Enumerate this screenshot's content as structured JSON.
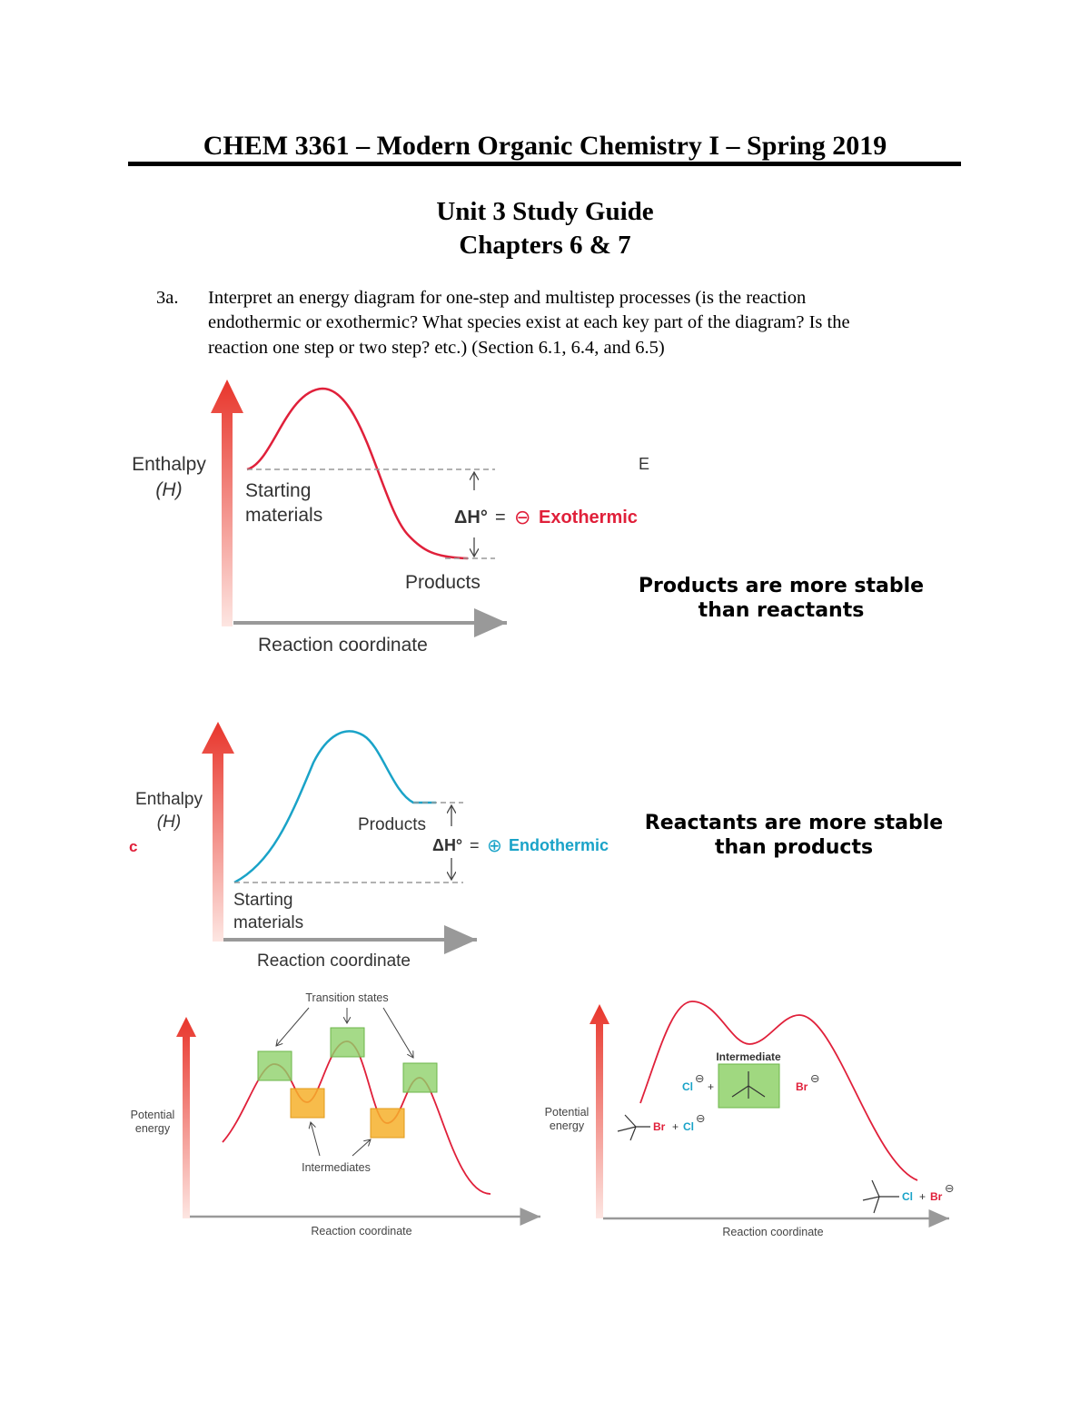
{
  "header": {
    "title": "CHEM 3361 – Modern Organic Chemistry I – Spring 2019"
  },
  "subtitle": {
    "line1": "Unit 3 Study Guide",
    "line2": "Chapters 6 & 7"
  },
  "objective": {
    "number": "3a.",
    "lines": [
      "Interpret an energy diagram for one-step and multistep processes (is the reaction",
      "endothermic or exothermic? What species exist at each key part of the diagram? Is the",
      "reaction one step or two step? etc.) (Section 6.1, 6.4, and 6.5)"
    ]
  },
  "diagrams": [
    {
      "y_label": "Enthalpy",
      "y_symbol": "(H)",
      "start_label": [
        "Starting",
        "materials"
      ],
      "end_label": "Products",
      "delta": "ΔH°",
      "equals": "=",
      "sign": "⊖",
      "result": "Exothermic",
      "x_label": "Reaction coordinate",
      "stray": "E",
      "note": [
        "Products are more stable",
        "than reactants"
      ]
    },
    {
      "y_label": "Enthalpy",
      "y_symbol": "(H)",
      "start_label": [
        "Starting",
        "materials"
      ],
      "end_label": "Products",
      "delta": "ΔH°",
      "equals": "=",
      "sign": "⊕",
      "result": "Endothermic",
      "x_label": "Reaction coordinate",
      "stray": "c",
      "note": [
        "Reactants are more stable",
        "than products"
      ]
    },
    {
      "y_label": [
        "Potential",
        "energy"
      ],
      "x_label": "Reaction coordinate",
      "ts_label": "Transition states",
      "int_label": "Intermediates"
    },
    {
      "y_label": [
        "Potential",
        "energy"
      ],
      "x_label": "Reaction coordinate",
      "int_label": "Intermediate",
      "species": {
        "chlorine": "Cl",
        "bromine": "Br",
        "anion": "⊖",
        "plus": "+"
      }
    }
  ]
}
